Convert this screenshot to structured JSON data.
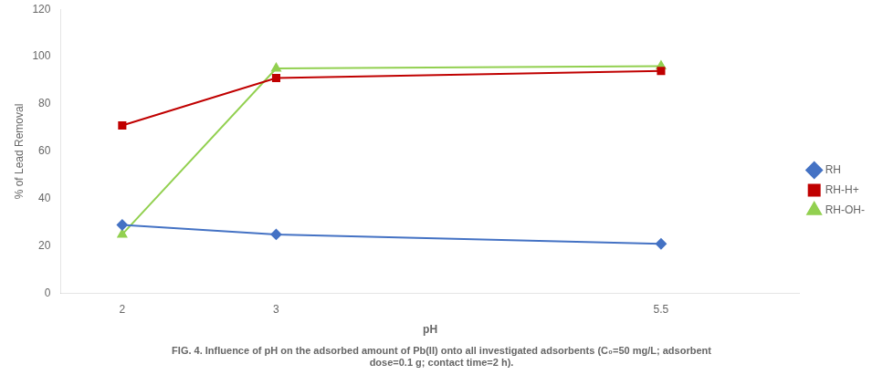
{
  "chart_data": {
    "type": "line",
    "title": [
      "FIG. 4. Influence of pH on the adsorbed amount of Pb(II) onto all investigated adsorbents (C₀=50 mg/L; adsorbent",
      "dose=0.1 g; contact time=2 h)."
    ],
    "x_label": "pH",
    "y_label": "% of Lead Removal",
    "x": [
      2,
      3,
      5.5
    ],
    "series": [
      {
        "name": "RH",
        "color": "#4472C4",
        "marker": "diamond",
        "values": [
          29,
          25,
          21
        ]
      },
      {
        "name": "RH-H+",
        "color": "#C00000",
        "marker": "square",
        "values": [
          71,
          91,
          94
        ]
      },
      {
        "name": "RH-OH-",
        "color": "#92D050",
        "marker": "triangle",
        "values": [
          25,
          95,
          96
        ]
      }
    ],
    "xlim": [
      1.6,
      6.4
    ],
    "xticks": [
      2,
      3,
      5.5
    ],
    "ylim": [
      0,
      120
    ],
    "yticks": [
      0,
      20,
      40,
      60,
      80,
      100,
      120
    ],
    "grid": false,
    "legend": "right"
  }
}
